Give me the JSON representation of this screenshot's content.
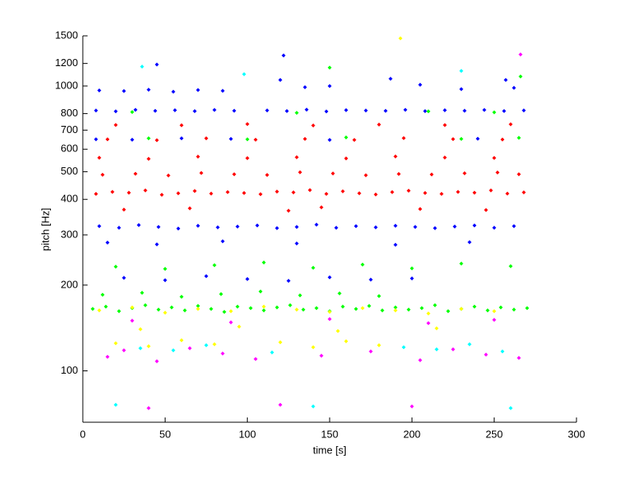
{
  "chart_data": {
    "type": "scatter",
    "xlabel": "time [s]",
    "ylabel": "pitch [Hz]",
    "xlim": [
      0,
      300
    ],
    "xticks": [
      0,
      50,
      100,
      150,
      200,
      250,
      300
    ],
    "ylim": [
      66,
      1500
    ],
    "yticks": [
      100,
      200,
      300,
      400,
      500,
      600,
      700,
      800,
      1000,
      1200,
      1500
    ],
    "yscale": "log",
    "grid": false,
    "series": [
      {
        "color": "#ff0000",
        "x": [
          8,
          18,
          28,
          38,
          48,
          58,
          68,
          78,
          88,
          98,
          108,
          118,
          128,
          138,
          148,
          158,
          168,
          178,
          188,
          198,
          208,
          218,
          228,
          238,
          248,
          258,
          268,
          12,
          32,
          52,
          72,
          92,
          112,
          132,
          152,
          172,
          192,
          212,
          232,
          252,
          265,
          10,
          40,
          70,
          100,
          130,
          160,
          190,
          220,
          250,
          15,
          45,
          75,
          105,
          135,
          165,
          195,
          225,
          255,
          20,
          60,
          100,
          140,
          180,
          220,
          260,
          25,
          65,
          125,
          145,
          205,
          245
        ],
        "values": [
          418,
          425,
          422,
          430,
          415,
          420,
          428,
          419,
          424,
          421,
          417,
          426,
          423,
          431,
          418,
          427,
          420,
          416,
          424,
          429,
          421,
          418,
          425,
          422,
          430,
          419,
          423,
          488,
          492,
          485,
          495,
          490,
          487,
          498,
          493,
          486,
          491,
          489,
          494,
          497,
          490,
          560,
          555,
          565,
          558,
          562,
          557,
          566,
          561,
          559,
          650,
          645,
          655,
          648,
          652,
          647,
          656,
          651,
          649,
          730,
          728,
          735,
          727,
          732,
          729,
          734,
          368,
          372,
          365,
          375,
          370,
          367
        ]
      },
      {
        "color": "#0000ff",
        "x": [
          8,
          20,
          32,
          44,
          56,
          68,
          80,
          92,
          112,
          124,
          136,
          148,
          160,
          172,
          184,
          196,
          208,
          220,
          232,
          244,
          256,
          268,
          10,
          25,
          40,
          55,
          70,
          85,
          120,
          135,
          150,
          205,
          230,
          262,
          10,
          22,
          34,
          46,
          58,
          70,
          82,
          94,
          106,
          118,
          130,
          142,
          154,
          166,
          178,
          190,
          202,
          214,
          226,
          238,
          250,
          262,
          8,
          30,
          60,
          90,
          150,
          240,
          25,
          50,
          75,
          100,
          125,
          150,
          175,
          200,
          15,
          45,
          85,
          130,
          190,
          235,
          45,
          122,
          257,
          187
        ],
        "values": [
          820,
          815,
          825,
          818,
          822,
          816,
          824,
          819,
          821,
          817,
          826,
          814,
          823,
          820,
          818,
          825,
          816,
          822,
          819,
          824,
          817,
          821,
          965,
          960,
          970,
          955,
          968,
          962,
          1050,
          990,
          1000,
          1010,
          975,
          985,
          322,
          318,
          325,
          320,
          316,
          323,
          319,
          321,
          324,
          317,
          320,
          326,
          318,
          322,
          319,
          323,
          320,
          317,
          321,
          324,
          318,
          322,
          650,
          648,
          655,
          652,
          647,
          653,
          212,
          208,
          215,
          210,
          207,
          213,
          209,
          211,
          282,
          278,
          285,
          280,
          277,
          283,
          1190,
          1280,
          1050,
          1060
        ]
      },
      {
        "color": "#00ff00",
        "x": [
          6,
          14,
          22,
          30,
          38,
          46,
          54,
          62,
          70,
          78,
          86,
          94,
          102,
          110,
          118,
          126,
          134,
          142,
          150,
          158,
          166,
          174,
          182,
          190,
          198,
          206,
          214,
          222,
          230,
          238,
          246,
          254,
          262,
          270,
          12,
          36,
          60,
          84,
          108,
          132,
          156,
          180,
          20,
          50,
          80,
          110,
          140,
          170,
          200,
          230,
          260,
          30,
          130,
          210,
          250,
          40,
          100,
          160,
          230,
          265,
          150,
          266
        ],
        "values": [
          165,
          168,
          162,
          166,
          170,
          164,
          167,
          163,
          169,
          165,
          161,
          168,
          166,
          163,
          167,
          170,
          164,
          166,
          162,
          168,
          165,
          169,
          163,
          167,
          164,
          166,
          170,
          162,
          165,
          168,
          163,
          167,
          164,
          166,
          185,
          188,
          182,
          186,
          190,
          184,
          187,
          183,
          232,
          228,
          235,
          240,
          230,
          236,
          229,
          238,
          233,
          810,
          805,
          815,
          808,
          655,
          650,
          660,
          652,
          658,
          1160,
          1080
        ]
      },
      {
        "color": "#ffff00",
        "x": [
          10,
          30,
          50,
          70,
          90,
          110,
          130,
          150,
          170,
          190,
          210,
          230,
          250,
          20,
          40,
          60,
          80,
          120,
          140,
          160,
          180,
          35,
          95,
          155,
          215,
          193
        ],
        "values": [
          163,
          167,
          160,
          165,
          162,
          168,
          164,
          161,
          166,
          163,
          159,
          165,
          162,
          125,
          122,
          128,
          124,
          126,
          121,
          127,
          123,
          140,
          143,
          138,
          141,
          1470
        ]
      },
      {
        "color": "#ff00ff",
        "x": [
          15,
          25,
          45,
          65,
          85,
          105,
          145,
          175,
          205,
          225,
          245,
          265,
          30,
          90,
          150,
          210,
          250,
          40,
          120,
          200,
          266
        ],
        "values": [
          112,
          118,
          108,
          120,
          115,
          110,
          113,
          117,
          109,
          119,
          114,
          111,
          150,
          148,
          152,
          147,
          151,
          74,
          76,
          75,
          1290
        ]
      },
      {
        "color": "#00ffff",
        "x": [
          35,
          55,
          75,
          115,
          195,
          215,
          235,
          255,
          36,
          98,
          230,
          20,
          140,
          260
        ],
        "values": [
          120,
          118,
          123,
          116,
          121,
          119,
          124,
          117,
          1170,
          1100,
          1130,
          76,
          75,
          74
        ]
      }
    ]
  }
}
